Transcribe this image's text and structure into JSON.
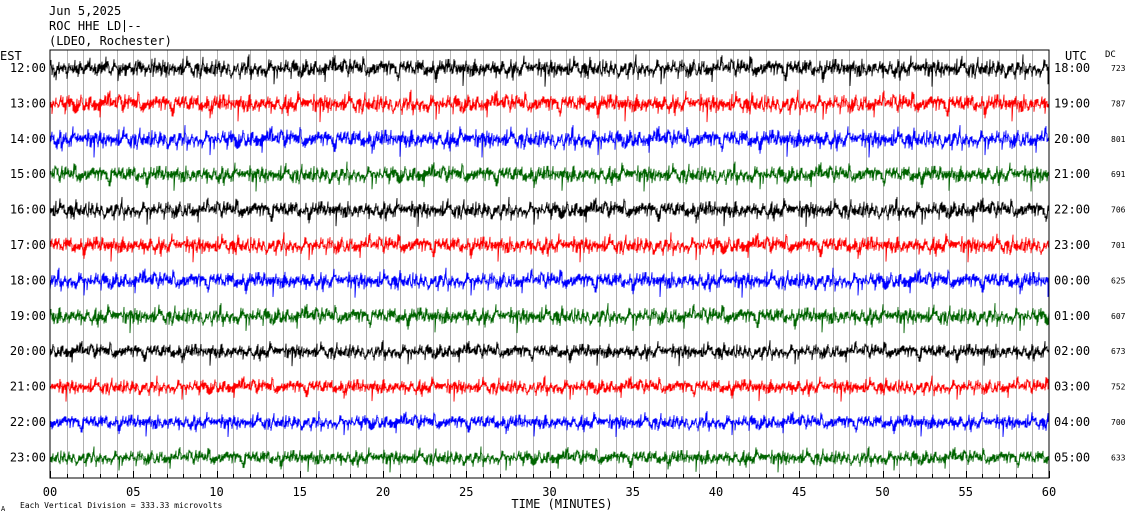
{
  "header": {
    "date": "Jun 5,2025",
    "station": "ROC HHE LD",
    "station_suffix": "--",
    "network": "(LDEO, Rochester)"
  },
  "left_zone": "EST",
  "right_zone": "UTC",
  "dc_header": "DC",
  "footer": {
    "mark": "A",
    "scale_note": "Each Vertical Division =  333.33 microvolts"
  },
  "colors": {
    "black": "#000000",
    "red": "#ff0000",
    "blue": "#0000ff",
    "green": "#006400",
    "grid": "#808080"
  },
  "chart_data": {
    "type": "line",
    "xlabel": "TIME (MINUTES)",
    "xlim": [
      0,
      60
    ],
    "x_ticks": [
      "00",
      "05",
      "10",
      "15",
      "20",
      "25",
      "30",
      "35",
      "40",
      "45",
      "50",
      "55",
      "60"
    ],
    "minor_tick_step_minutes": 1,
    "traces": [
      {
        "est": "12:00",
        "utc": "18:00",
        "dc": "723",
        "color": "black"
      },
      {
        "est": "13:00",
        "utc": "19:00",
        "dc": "787",
        "color": "red"
      },
      {
        "est": "14:00",
        "utc": "20:00",
        "dc": "801",
        "color": "blue"
      },
      {
        "est": "15:00",
        "utc": "21:00",
        "dc": "691",
        "color": "green"
      },
      {
        "est": "16:00",
        "utc": "22:00",
        "dc": "706",
        "color": "black"
      },
      {
        "est": "17:00",
        "utc": "23:00",
        "dc": "701",
        "color": "red"
      },
      {
        "est": "18:00",
        "utc": "00:00",
        "dc": "625",
        "color": "blue"
      },
      {
        "est": "19:00",
        "utc": "01:00",
        "dc": "607",
        "color": "green"
      },
      {
        "est": "20:00",
        "utc": "02:00",
        "dc": "673",
        "color": "black"
      },
      {
        "est": "21:00",
        "utc": "03:00",
        "dc": "752",
        "color": "red"
      },
      {
        "est": "22:00",
        "utc": "04:00",
        "dc": "700",
        "color": "blue"
      },
      {
        "est": "23:00",
        "utc": "05:00",
        "dc": "633",
        "color": "green"
      }
    ]
  }
}
